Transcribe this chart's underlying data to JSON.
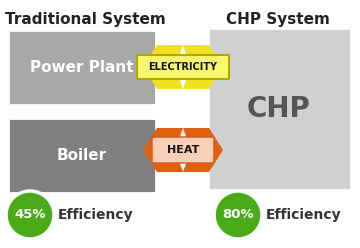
{
  "bg_color": "#ffffff",
  "title_left": "Traditional System",
  "title_right": "CHP System",
  "box_power_plant_label": "Power Plant",
  "box_boiler_label": "Boiler",
  "box_chp_label": "CHP",
  "box_pp_color": "#a8a8a8",
  "box_boiler_color": "#808080",
  "box_chp_color": "#d0d0d0",
  "electricity_label": "ELECTRICITY",
  "heat_label": "HEAT",
  "electricity_color": "#f0e020",
  "electricity_border": "#b0a800",
  "heat_color_outer": "#e06010",
  "heat_color_inner": "#f8c090",
  "efficiency_left_pct": "45%",
  "efficiency_right_pct": "80%",
  "efficiency_label": "Efficiency",
  "green_circle_color": "#4aaa18",
  "label_bg": "#f8f870",
  "heat_label_bg": "#f8d0b8"
}
